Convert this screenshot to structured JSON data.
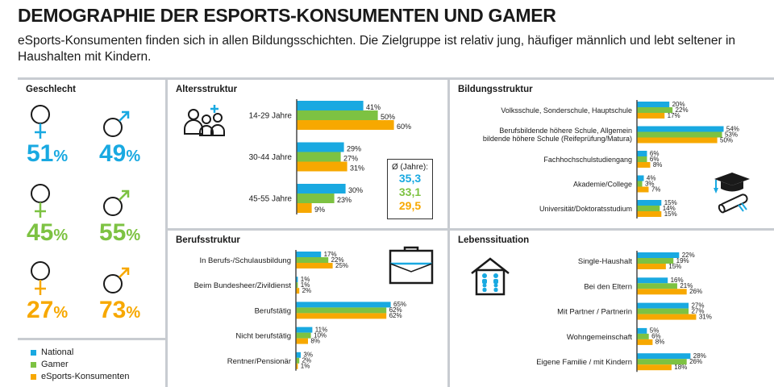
{
  "colors": {
    "national": "#19a9e1",
    "gamer": "#7dc242",
    "esports": "#f7a800",
    "separator": "#c8ccd1"
  },
  "header": {
    "title": "DEMOGRAPHIE DER ESPORTS-KONSUMENTEN UND GAMER",
    "subtitle": "eSports-Konsumenten finden sich in allen Bildungsschichten. Die Zielgruppe ist relativ jung, häufiger männlich und lebt seltener in Haushalten mit Kindern."
  },
  "gender": {
    "title": "Geschlecht",
    "rows": [
      {
        "group": "national",
        "female": "51",
        "male": "49"
      },
      {
        "group": "gamer",
        "female": "45",
        "male": "55"
      },
      {
        "group": "esports",
        "female": "27",
        "male": "73"
      }
    ],
    "unit": "%"
  },
  "legend": [
    "National",
    "Gamer",
    "eSports-Konsumenten"
  ],
  "average": {
    "label": "Ø (Jahre):",
    "national": "35,3",
    "gamer": "33,1",
    "esports": "29,5"
  },
  "chart_data": [
    {
      "type": "bar",
      "title": "Altersstruktur",
      "orientation": "horizontal",
      "categories": [
        "14-29 Jahre",
        "30-44 Jahre",
        "45-55 Jahre"
      ],
      "series": [
        {
          "name": "National",
          "values": [
            41,
            29,
            30
          ]
        },
        {
          "name": "Gamer",
          "values": [
            50,
            27,
            23
          ]
        },
        {
          "name": "eSports-Konsumenten",
          "values": [
            60,
            31,
            9
          ]
        }
      ]
    },
    {
      "type": "bar",
      "title": "Bildungsstruktur",
      "orientation": "horizontal",
      "categories": [
        "Volksschule, Sonderschule, Hauptschule",
        "Berufsbildende höhere Schule, Allgemein bildende höhere Schule (Reifeprüfung/Matura)",
        "Fachhochschulstudiengang",
        "Akademie/College",
        "Universität/Doktoratsstudium"
      ],
      "series": [
        {
          "name": "National",
          "values": [
            20,
            54,
            6,
            4,
            15
          ]
        },
        {
          "name": "Gamer",
          "values": [
            22,
            53,
            6,
            3,
            14
          ]
        },
        {
          "name": "eSports-Konsumenten",
          "values": [
            17,
            50,
            8,
            7,
            15
          ]
        }
      ]
    },
    {
      "type": "bar",
      "title": "Berufsstruktur",
      "orientation": "horizontal",
      "categories": [
        "In Berufs-/Schulausbildung",
        "Beim Bundesheer/Zivildienst",
        "Berufstätig",
        "Nicht berufstätig",
        "Rentner/Pensionär"
      ],
      "series": [
        {
          "name": "National",
          "values": [
            17,
            1,
            65,
            11,
            3
          ]
        },
        {
          "name": "Gamer",
          "values": [
            22,
            1,
            62,
            10,
            2
          ]
        },
        {
          "name": "eSports-Konsumenten",
          "values": [
            25,
            2,
            62,
            8,
            1
          ]
        }
      ]
    },
    {
      "type": "bar",
      "title": "Lebenssituation",
      "orientation": "horizontal",
      "categories": [
        "Single-Haushalt",
        "Bei den Eltern",
        "Mit Partner / Partnerin",
        "Wohngemeinschaft",
        "Eigene Familie / mit Kindern"
      ],
      "series": [
        {
          "name": "National",
          "values": [
            22,
            16,
            27,
            5,
            28
          ]
        },
        {
          "name": "Gamer",
          "values": [
            19,
            21,
            27,
            6,
            26
          ]
        },
        {
          "name": "eSports-Konsumenten",
          "values": [
            15,
            26,
            31,
            8,
            18
          ]
        }
      ]
    }
  ]
}
